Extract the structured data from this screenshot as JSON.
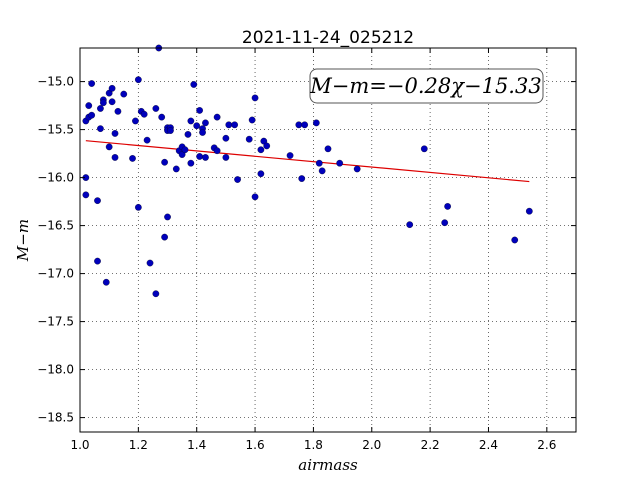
{
  "chart_data": {
    "type": "scatter",
    "title": "2021-11-24_025212",
    "xlabel": "airmass",
    "ylabel": "M−m",
    "xlim": [
      1.0,
      2.7
    ],
    "ylim": [
      -18.65,
      -14.65
    ],
    "y_inverted": false,
    "grid": true,
    "xticks": [
      1.0,
      1.2,
      1.4,
      1.6,
      1.8,
      2.0,
      2.2,
      2.4,
      2.6
    ],
    "xtick_labels": [
      "1.0",
      "1.2",
      "1.4",
      "1.6",
      "1.8",
      "2.0",
      "2.2",
      "2.4",
      "2.6"
    ],
    "yticks": [
      -15.0,
      -15.5,
      -16.0,
      -16.5,
      -17.0,
      -17.5,
      -18.0,
      -18.5
    ],
    "ytick_labels": [
      "−15.0",
      "−15.5",
      "−16.0",
      "−16.5",
      "−17.0",
      "−17.5",
      "−18.0",
      "−18.5"
    ],
    "annotation": "M−m=−0.28χ−15.33",
    "fit": {
      "slope": -0.28,
      "intercept": -15.33,
      "x_range": [
        1.02,
        2.54
      ],
      "color": "#dd0000"
    },
    "point_color": "#0000bb",
    "x": [
      1.02,
      1.02,
      1.02,
      1.03,
      1.03,
      1.04,
      1.04,
      1.06,
      1.06,
      1.07,
      1.07,
      1.08,
      1.08,
      1.09,
      1.1,
      1.1,
      1.11,
      1.11,
      1.12,
      1.12,
      1.13,
      1.15,
      1.18,
      1.19,
      1.2,
      1.2,
      1.21,
      1.22,
      1.23,
      1.24,
      1.26,
      1.26,
      1.27,
      1.28,
      1.29,
      1.29,
      1.3,
      1.3,
      1.3,
      1.31,
      1.31,
      1.33,
      1.34,
      1.35,
      1.35,
      1.36,
      1.37,
      1.38,
      1.38,
      1.39,
      1.4,
      1.41,
      1.41,
      1.42,
      1.42,
      1.43,
      1.43,
      1.46,
      1.47,
      1.47,
      1.5,
      1.5,
      1.51,
      1.53,
      1.54,
      1.58,
      1.59,
      1.6,
      1.6,
      1.62,
      1.62,
      1.63,
      1.64,
      1.72,
      1.75,
      1.76,
      1.77,
      1.81,
      1.82,
      1.83,
      1.85,
      1.89,
      1.95,
      2.13,
      2.18,
      2.25,
      2.26,
      2.49,
      2.54
    ],
    "y": [
      -16.0,
      -16.18,
      -15.41,
      -15.37,
      -15.25,
      -15.02,
      -15.35,
      -16.87,
      -16.24,
      -15.49,
      -15.28,
      -15.19,
      -15.22,
      -17.09,
      -15.12,
      -15.68,
      -15.07,
      -15.21,
      -15.54,
      -15.79,
      -15.31,
      -15.13,
      -15.8,
      -15.41,
      -14.98,
      -16.31,
      -15.31,
      -15.34,
      -15.61,
      -16.89,
      -15.28,
      -17.21,
      -14.65,
      -15.37,
      -16.62,
      -15.84,
      -15.48,
      -15.51,
      -16.41,
      -15.48,
      -15.51,
      -15.91,
      -15.72,
      -15.68,
      -15.76,
      -15.71,
      -15.55,
      -15.41,
      -15.85,
      -15.03,
      -15.46,
      -15.3,
      -15.78,
      -15.49,
      -15.53,
      -15.43,
      -15.79,
      -15.69,
      -15.37,
      -15.72,
      -15.59,
      -15.79,
      -15.45,
      -15.45,
      -16.02,
      -15.6,
      -15.4,
      -15.17,
      -16.2,
      -15.71,
      -15.96,
      -15.62,
      -15.67,
      -15.77,
      -15.45,
      -16.01,
      -15.45,
      -15.43,
      -15.85,
      -15.93,
      -15.7,
      -15.85,
      -15.91,
      -16.49,
      -15.7,
      -16.47,
      -16.3,
      -16.65,
      -16.35
    ]
  }
}
